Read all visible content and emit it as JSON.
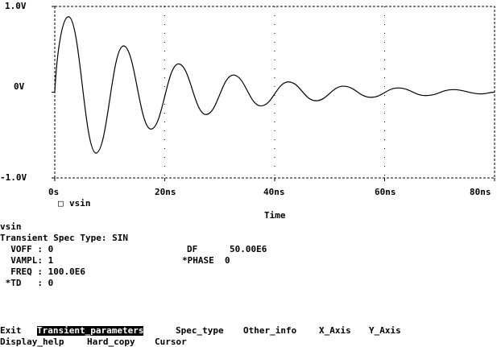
{
  "chart_data": {
    "type": "line",
    "x_unit": "ns",
    "xlim": [
      0,
      80
    ],
    "ylim": [
      -1.0,
      1.0
    ],
    "x_ticks": [
      {
        "value": 0,
        "label": "0s"
      },
      {
        "value": 20,
        "label": "20ns"
      },
      {
        "value": 40,
        "label": "40ns"
      },
      {
        "value": 60,
        "label": "60ns"
      },
      {
        "value": 80,
        "label": "80ns"
      }
    ],
    "y_ticks": [
      {
        "value": 1.0,
        "label": "1.0V"
      },
      {
        "value": 0,
        "label": "0V"
      },
      {
        "value": -1.0,
        "label": "-1.0V"
      }
    ],
    "xlabel": "Time",
    "legend": {
      "name": "vsin",
      "marker": "□",
      "placement": "bottom-left"
    },
    "grid": "dotted",
    "series": [
      {
        "name": "vsin",
        "x": [
          0,
          2.5,
          7.5,
          12.5,
          17.5,
          22.5,
          27.5,
          32.5,
          37.5,
          42.5,
          47.5,
          52.5,
          57.5,
          62.5,
          67.5,
          72.5,
          77.5,
          80
        ],
        "y": [
          0,
          0.88,
          -0.71,
          0.54,
          -0.43,
          0.33,
          -0.26,
          0.2,
          -0.16,
          0.12,
          -0.1,
          0.07,
          -0.06,
          0.05,
          -0.04,
          0.03,
          -0.02,
          0
        ]
      }
    ]
  },
  "info": {
    "title": "vsin",
    "spec_type": "Transient Spec Type: SIN",
    "voff": "  VOFF : 0",
    "vampl": "  VAMPL: 1",
    "freq": "  FREQ : 100.0E6",
    "td": " *TD   : 0",
    "df": "DF      50.00E6",
    "phase": "*PHASE  0"
  },
  "menu": {
    "exit": "Exit",
    "transient_parameters": "Transient_parameters",
    "spec_type": "Spec_type",
    "other_info": "Other_info",
    "x_axis": "X_Axis",
    "y_axis": "Y_Axis",
    "display_help": "Display_help",
    "hard_copy": "Hard_copy",
    "cursor": "Cursor"
  }
}
